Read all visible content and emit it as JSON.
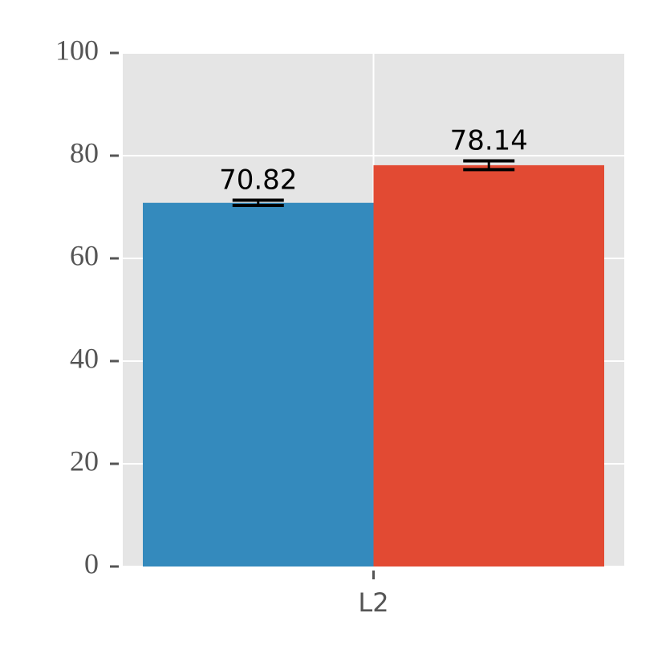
{
  "chart_data": {
    "type": "bar",
    "categories": [
      "L2"
    ],
    "series": [
      {
        "color": "#348abd",
        "values": [
          70.82
        ],
        "errors": [
          0.5
        ]
      },
      {
        "color": "#e24a33",
        "values": [
          78.14
        ],
        "errors": [
          0.85
        ]
      }
    ],
    "ylim": [
      0,
      100
    ],
    "yticks": [
      0,
      20,
      40,
      60,
      80,
      100
    ],
    "grid": true
  }
}
